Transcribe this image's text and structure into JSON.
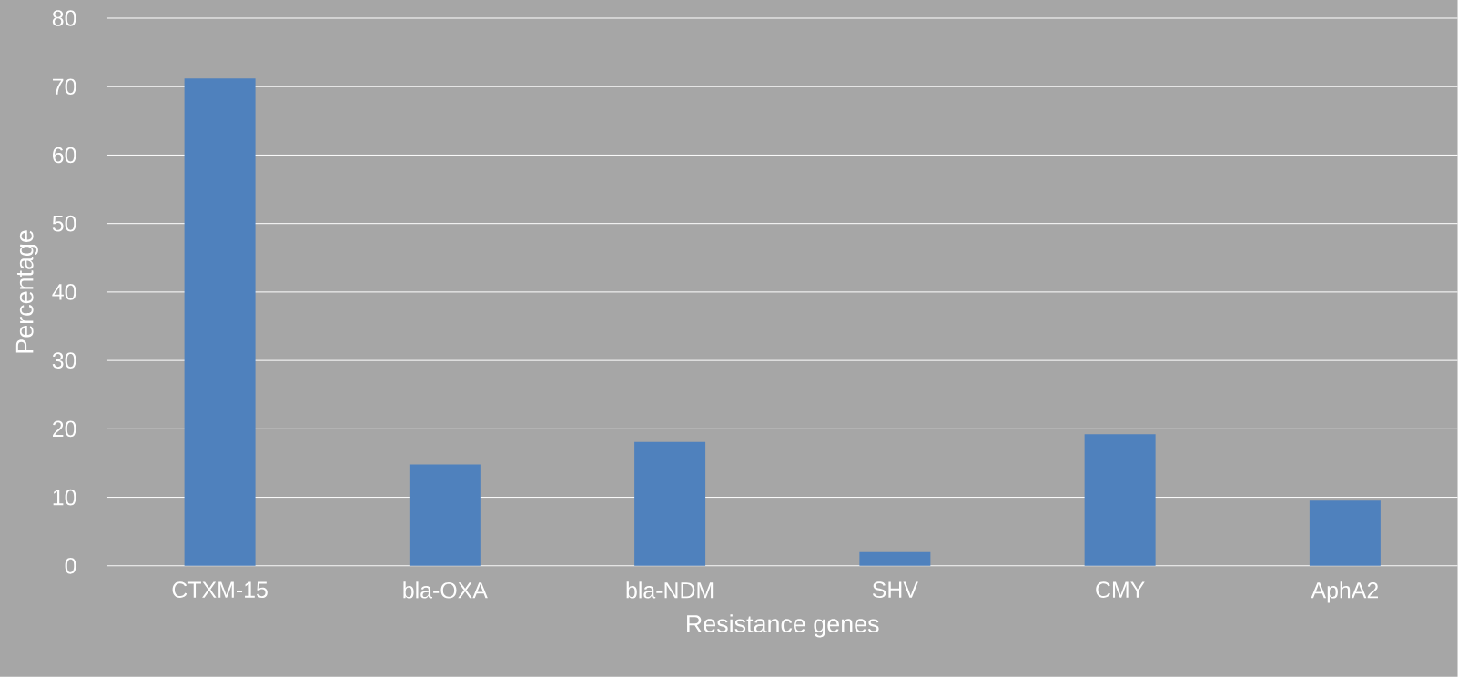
{
  "chart_data": {
    "type": "bar",
    "xlabel": "Resistance genes",
    "ylabel": "Percentage",
    "categories": [
      "CTXM-15",
      "bla-OXA",
      "bla-NDM",
      "SHV",
      "CMY",
      "AphA2"
    ],
    "values": [
      71.2,
      14.8,
      18.1,
      2.0,
      19.2,
      9.5
    ],
    "color": "#4f81bd",
    "ylim": [
      0,
      80
    ],
    "yticks": [
      0,
      10,
      20,
      30,
      40,
      50,
      60,
      70,
      80
    ],
    "grid": "y"
  }
}
